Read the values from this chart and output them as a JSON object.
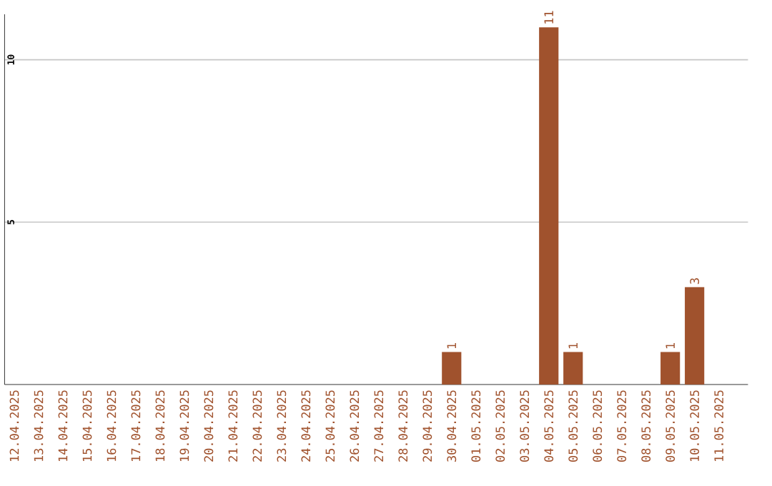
{
  "chart_data": {
    "type": "bar",
    "categories": [
      "12.04.2025",
      "13.04.2025",
      "14.04.2025",
      "15.04.2025",
      "16.04.2025",
      "17.04.2025",
      "18.04.2025",
      "19.04.2025",
      "20.04.2025",
      "21.04.2025",
      "22.04.2025",
      "23.04.2025",
      "24.04.2025",
      "25.04.2025",
      "26.04.2025",
      "27.04.2025",
      "28.04.2025",
      "29.04.2025",
      "30.04.2025",
      "01.05.2025",
      "02.05.2025",
      "03.05.2025",
      "04.05.2025",
      "05.05.2025",
      "06.05.2025",
      "07.05.2025",
      "08.05.2025",
      "09.05.2025",
      "10.05.2025",
      "11.05.2025"
    ],
    "values": [
      0,
      0,
      0,
      0,
      0,
      0,
      0,
      0,
      0,
      0,
      0,
      0,
      0,
      0,
      0,
      0,
      0,
      0,
      1,
      0,
      0,
      0,
      11,
      1,
      0,
      0,
      0,
      1,
      3,
      0
    ],
    "value_labels": [
      null,
      null,
      null,
      null,
      null,
      null,
      null,
      null,
      null,
      null,
      null,
      null,
      null,
      null,
      null,
      null,
      null,
      null,
      "1",
      null,
      null,
      null,
      "11",
      "1",
      null,
      null,
      null,
      "1",
      "3",
      null
    ],
    "color": "#a0522d",
    "ylim": [
      0,
      11.4
    ],
    "yticks": [
      5,
      10
    ],
    "grid": "y"
  }
}
